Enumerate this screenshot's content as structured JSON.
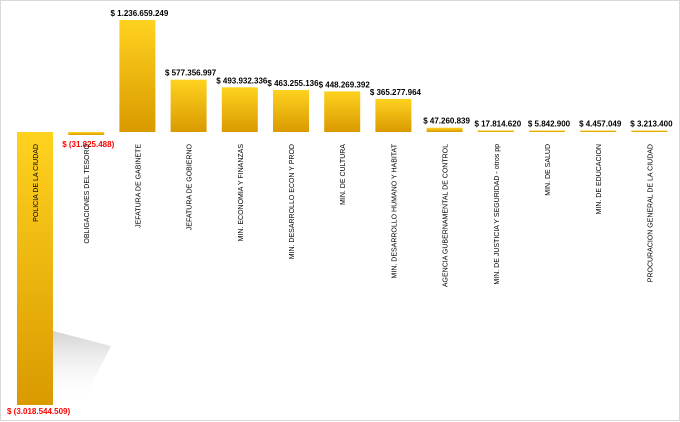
{
  "chart_data": {
    "type": "bar",
    "title": "",
    "xlabel": "",
    "ylabel": "",
    "categories": [
      "POLICIA DE LA CIUDAD",
      "OBLIGACIONES DEL TESORO",
      "JEFATURA DE GABINETE",
      "JEFATURA DE GOBIERNO",
      "MIN. ECONOMIA Y FINANZAS",
      "MIN. DESARROLLO ECON Y PROD",
      "MIN. DE CULTURA",
      "MIN. DESARROLLO HUMANO Y HABITAT",
      "AGENCIA GUBERNAMENTAL DE CONTROL",
      "MIN. DE JUSTICIA Y SEGURIDAD - otros pp",
      "MIN. DE SALUD",
      "MIN. DE EDUCACION",
      "PROCURACION GENERAL DE LA CIUDAD"
    ],
    "values": [
      -3018544509,
      -31825488,
      1236659249,
      577356997,
      493932336,
      463255136,
      448269392,
      365277964,
      47260839,
      17814620,
      5842900,
      4457049,
      3213400
    ],
    "value_labels": [
      "$ (3.018.544.509)",
      "$ (31.825.488)",
      "$ 1.236.659.249",
      "$ 577.356.997",
      "$ 493.932.336",
      "$ 463.255.136",
      "$ 448.269.392",
      "$ 365.277.964",
      "$ 47.260.839",
      "$ 17.814.620",
      "$ 5.842.900",
      "$ 4.457.049",
      "$ 3.213.400"
    ],
    "ylim": [
      -3018544509,
      1236659249
    ],
    "grid": false,
    "legend": "none",
    "colors": {
      "bar_top": "#ffd21f",
      "bar_bottom": "#d99a00",
      "positive_label": "#000000",
      "negative_label": "#ff0000"
    }
  }
}
